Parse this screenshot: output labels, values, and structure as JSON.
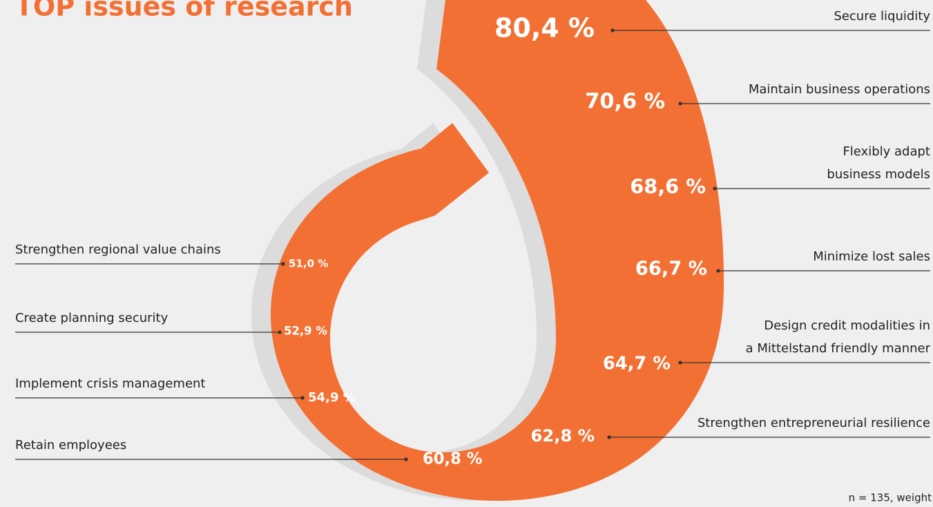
{
  "chart_data": {
    "type": "spiral",
    "title": "TOP issues of research",
    "note": "n = 135, weight",
    "categories": [
      "Secure liquidity",
      "Maintain business operations",
      "Flexibly adapt\nbusiness models",
      "Minimize lost sales",
      "Design credit modalities in\na Mittelstand friendly manner",
      "Strengthen entrepreneurial resilience",
      "Retain employees",
      "Implement crisis management",
      "Create planning security",
      "Strengthen regional value chains"
    ],
    "values": [
      80.4,
      70.6,
      68.6,
      66.7,
      64.7,
      62.8,
      60.8,
      54.9,
      52.9,
      51.0
    ],
    "value_labels": [
      "80,4 %",
      "70,6 %",
      "68,6 %",
      "66,7 %",
      "64,7 %",
      "62,8 %",
      "60,8 %",
      "54,9 %",
      "52,9 %",
      "51,0 %"
    ],
    "color": "#f37034"
  }
}
